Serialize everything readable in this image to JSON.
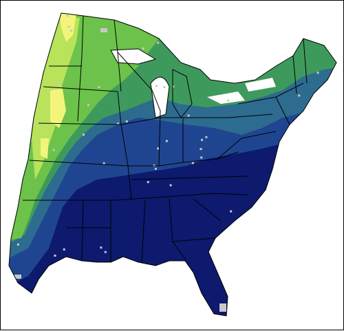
{
  "map": {
    "palette": {
      "very_high": "#0d1a6e",
      "high": "#1f4590",
      "medium_high": "#2d6b8f",
      "medium": "#3e9a5c",
      "medium_low": "#6cc24a",
      "low": "#b8e35a",
      "very_low": "#f2f57a",
      "no_data": "#c8c8c8",
      "outline": "#000000"
    },
    "region_fill_order": [
      "very_low",
      "low",
      "medium_low",
      "medium",
      "medium_high",
      "high",
      "very_high"
    ],
    "extent": "eastern-united-states"
  }
}
